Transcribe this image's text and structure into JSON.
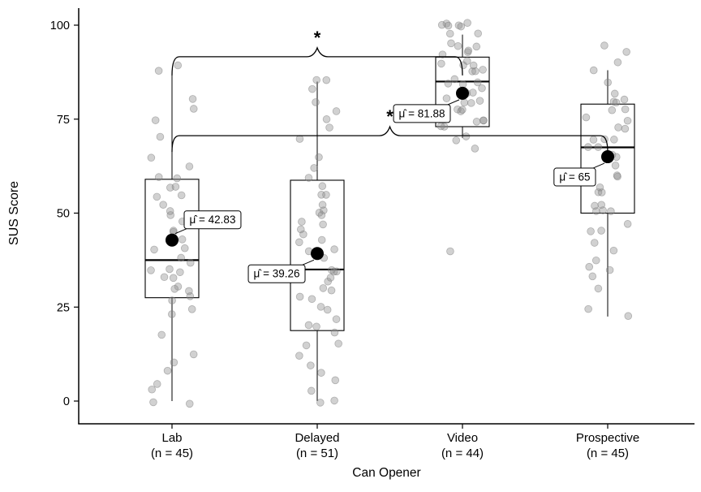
{
  "figure": {
    "background": "#ffffff"
  },
  "chart_data": {
    "type": "boxplot",
    "title": "",
    "xlabel": "Can Opener",
    "ylabel": "SUS Score",
    "ylim": [
      0,
      100
    ],
    "yticks": [
      0,
      25,
      50,
      75,
      100
    ],
    "grid": false,
    "legend": false,
    "colors": {
      "point_fill": "#8c8c8c",
      "point_stroke": "#7a7a7a",
      "box_border": "#000000",
      "median_line": "#000000",
      "mean_dot": "#000000",
      "axis": "#000000",
      "callout_bg": "#ffffff",
      "callout_border": "#000000"
    },
    "groups": [
      {
        "label": "Lab",
        "n_label": "(n = 45)",
        "n": 45,
        "mean": 42.83,
        "mean_label": "μ̂ = 42.83",
        "label_side": "upper-right",
        "box": {
          "q1": 27.5,
          "median": 37.5,
          "q3": 59,
          "whisker_low": 0,
          "whisker_high": 87.5
        },
        "points": [
          0,
          0,
          2.5,
          5,
          7.5,
          10,
          12.5,
          17.5,
          22.5,
          25,
          27.5,
          27.5,
          30,
          30,
          30,
          32.5,
          32.5,
          35,
          35,
          35,
          37.5,
          37.5,
          40,
          40,
          42.5,
          45,
          45,
          47.5,
          50,
          50,
          52.5,
          55,
          55,
          57.5,
          57.5,
          60,
          60,
          62.5,
          65,
          70,
          75,
          77.5,
          80,
          87.5,
          90
        ]
      },
      {
        "label": "Delayed",
        "n_label": "(n = 51)",
        "n": 51,
        "mean": 39.26,
        "mean_label": "μ̂ = 39.26",
        "label_side": "lower-left",
        "box": {
          "q1": 18.75,
          "median": 35,
          "q3": 58.75,
          "whisker_low": 0,
          "whisker_high": 85
        },
        "points": [
          0,
          0,
          2.5,
          5,
          7.5,
          10,
          12.5,
          15,
          15,
          17.5,
          20,
          20,
          22.5,
          25,
          25,
          27.5,
          27.5,
          30,
          30,
          32.5,
          32.5,
          35,
          35,
          35,
          37.5,
          40,
          40,
          42.5,
          42.5,
          45,
          45,
          47.5,
          47.5,
          50,
          50,
          50,
          52.5,
          55,
          55,
          57.5,
          60,
          62.5,
          65,
          70,
          72.5,
          75,
          77.5,
          80,
          82.5,
          85,
          85
        ]
      },
      {
        "label": "Video",
        "n_label": "(n = 44)",
        "n": 44,
        "mean": 81.88,
        "mean_label": "μ̂ = 81.88",
        "label_side": "lower-left",
        "box": {
          "q1": 73,
          "median": 85,
          "q3": 91.5,
          "whisker_low": 70,
          "whisker_high": 97.5
        },
        "points": [
          40,
          67.5,
          70,
          70,
          72.5,
          72.5,
          75,
          75,
          75,
          77.5,
          77.5,
          77.5,
          80,
          80,
          80,
          80,
          82.5,
          82.5,
          82.5,
          85,
          85,
          85,
          85,
          87.5,
          87.5,
          87.5,
          90,
          90,
          90,
          90,
          92.5,
          92.5,
          92.5,
          95,
          95,
          95,
          97.5,
          97.5,
          100,
          100,
          100,
          100,
          100,
          100
        ]
      },
      {
        "label": "Prospective",
        "n_label": "(n = 45)",
        "n": 45,
        "mean": 65,
        "mean_label": "μ̂ = 65",
        "label_side": "lower-left",
        "box": {
          "q1": 50,
          "median": 67.5,
          "q3": 79,
          "whisker_low": 22.5,
          "whisker_high": 88
        },
        "points": [
          22.5,
          25,
          30,
          32.5,
          35,
          35,
          37.5,
          40,
          42.5,
          45,
          45,
          47.5,
          50,
          50,
          50,
          52.5,
          52.5,
          55,
          55,
          57.5,
          60,
          60,
          62.5,
          65,
          65,
          67.5,
          67.5,
          70,
          70,
          70,
          72.5,
          72.5,
          75,
          75,
          77.5,
          77.5,
          80,
          80,
          80,
          82.5,
          85,
          87.5,
          90,
          92.5,
          95
        ]
      }
    ],
    "significance": [
      {
        "from": "Lab",
        "to": "Video",
        "label": "*",
        "y": 91.6
      },
      {
        "from": "Lab",
        "to": "Prospective",
        "label": "*",
        "y": 70.6
      }
    ]
  }
}
